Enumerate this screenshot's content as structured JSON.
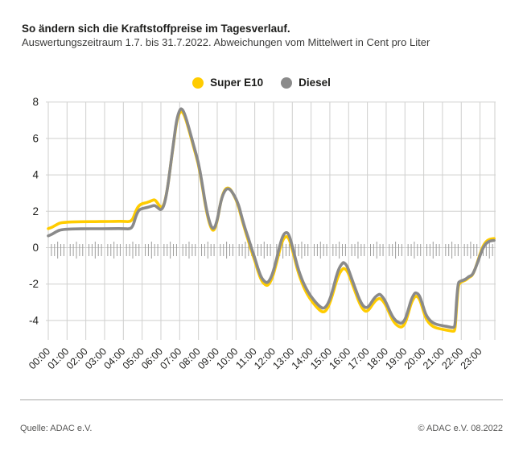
{
  "header": {
    "title": "So ändern sich die Kraftstoffpreise im Tagesverlauf.",
    "subtitle": "Auswertungszeitraum 1.7. bis 31.7.2022. Abweichungen vom Mittelwert in Cent pro Liter"
  },
  "legend": [
    {
      "label": "Super E10",
      "color": "#FFCC00"
    },
    {
      "label": "Diesel",
      "color": "#8A8A8A"
    }
  ],
  "footer": {
    "source": "Quelle: ADAC e.V.",
    "copyright": "© ADAC e.V. 08.2022"
  },
  "colors": {
    "grid": "#cfcfce",
    "minor_tick": "#9c9c9b",
    "axis_text": "#1d1d1b"
  },
  "chart_data": {
    "type": "line",
    "title": "So ändern sich die Kraftstoffpreise im Tagesverlauf.",
    "subtitle": "Auswertungszeitraum 1.7. bis 31.7.2022. Abweichungen vom Mittelwert in Cent pro Liter",
    "xlabel": "",
    "ylabel": "Abweichungen vom Mittelwert in Cent pro Liter",
    "x_unit": "hours",
    "xlim": [
      0,
      23.83
    ],
    "ylim": [
      -5,
      8
    ],
    "yticks": [
      8,
      6,
      4,
      2,
      0,
      -2,
      -4
    ],
    "grid": true,
    "legend_position": "top-center",
    "x_hour_labels": [
      "00:00",
      "01:00",
      "02:00",
      "03:00",
      "04:00",
      "05:00",
      "06:00",
      "07:00",
      "08:00",
      "09:00",
      "10:00",
      "11:00",
      "12:00",
      "13:00",
      "14:00",
      "15:00",
      "16:00",
      "17:00",
      "18:00",
      "19:00",
      "20:00",
      "21:00",
      "22:00",
      "23:00"
    ],
    "x": [
      0,
      0.17,
      0.33,
      0.5,
      0.67,
      1,
      1.5,
      2,
      2.5,
      3,
      3.5,
      4,
      4.33,
      4.5,
      4.67,
      4.83,
      5,
      5.25,
      5.5,
      5.67,
      5.83,
      6,
      6.17,
      6.33,
      6.5,
      6.67,
      6.83,
      7,
      7.1,
      7.25,
      7.5,
      7.75,
      8,
      8.17,
      8.33,
      8.5,
      8.67,
      8.83,
      9,
      9.17,
      9.33,
      9.5,
      9.67,
      9.83,
      10,
      10.17,
      10.33,
      10.5,
      10.67,
      10.83,
      11,
      11.17,
      11.33,
      11.5,
      11.67,
      11.83,
      12,
      12.17,
      12.33,
      12.5,
      12.67,
      12.83,
      13,
      13.17,
      13.33,
      13.5,
      13.67,
      13.83,
      14,
      14.25,
      14.5,
      14.67,
      14.83,
      15,
      15.17,
      15.33,
      15.5,
      15.67,
      15.75,
      15.92,
      16.08,
      16.25,
      16.42,
      16.58,
      16.75,
      16.92,
      17.08,
      17.25,
      17.42,
      17.58,
      17.67,
      17.83,
      18,
      18.17,
      18.33,
      18.5,
      18.67,
      18.83,
      19,
      19.17,
      19.33,
      19.5,
      19.58,
      19.75,
      19.92,
      20.08,
      20.25,
      20.42,
      20.58,
      20.83,
      21.08,
      21.33,
      21.58,
      21.67,
      21.75,
      21.83,
      21.92,
      22.08,
      22.25,
      22.42,
      22.58,
      22.75,
      22.92,
      23.08,
      23.25,
      23.42,
      23.58,
      23.75
    ],
    "series": [
      {
        "name": "Super E10",
        "color": "#FFCC00",
        "values": [
          1.05,
          1.1,
          1.2,
          1.3,
          1.37,
          1.4,
          1.42,
          1.43,
          1.43,
          1.44,
          1.44,
          1.45,
          1.42,
          1.55,
          2.05,
          2.32,
          2.42,
          2.47,
          2.58,
          2.65,
          2.45,
          2.17,
          2.35,
          3.1,
          4.4,
          5.7,
          6.9,
          7.45,
          7.5,
          7.3,
          6.45,
          5.5,
          4.6,
          3.6,
          2.55,
          1.65,
          1.05,
          0.9,
          1.45,
          2.45,
          3.05,
          3.3,
          3.25,
          3,
          2.65,
          2.15,
          1.5,
          0.9,
          0.35,
          -0.2,
          -0.7,
          -1.3,
          -1.75,
          -2,
          -2.1,
          -1.9,
          -1.45,
          -0.8,
          -0.1,
          0.45,
          0.65,
          0.5,
          -0.1,
          -0.8,
          -1.4,
          -1.9,
          -2.3,
          -2.62,
          -2.88,
          -3.22,
          -3.48,
          -3.55,
          -3.42,
          -3.05,
          -2.5,
          -1.9,
          -1.42,
          -1.18,
          -1.12,
          -1.25,
          -1.65,
          -2.15,
          -2.62,
          -3.05,
          -3.38,
          -3.52,
          -3.42,
          -3.15,
          -2.92,
          -2.8,
          -2.78,
          -2.92,
          -3.2,
          -3.6,
          -3.95,
          -4.2,
          -4.33,
          -4.38,
          -4.18,
          -3.65,
          -3.05,
          -2.72,
          -2.65,
          -2.75,
          -3.25,
          -3.8,
          -4.1,
          -4.28,
          -4.38,
          -4.45,
          -4.5,
          -4.55,
          -4.6,
          -4.55,
          -3.3,
          -2.15,
          -1.92,
          -1.85,
          -1.78,
          -1.62,
          -1.55,
          -1.15,
          -0.62,
          -0.1,
          0.25,
          0.42,
          0.48,
          0.5
        ]
      },
      {
        "name": "Diesel",
        "color": "#8A8A8A",
        "values": [
          0.65,
          0.72,
          0.82,
          0.92,
          0.98,
          1.02,
          1.03,
          1.04,
          1.04,
          1.04,
          1.05,
          1.05,
          1.02,
          1.15,
          1.75,
          2.08,
          2.15,
          2.2,
          2.28,
          2.33,
          2.2,
          2.05,
          2.3,
          3.1,
          4.4,
          5.75,
          7,
          7.58,
          7.65,
          7.42,
          6.55,
          5.6,
          4.7,
          3.7,
          2.65,
          1.75,
          1.15,
          1,
          1.5,
          2.45,
          3,
          3.25,
          3.22,
          3,
          2.7,
          2.25,
          1.6,
          1,
          0.5,
          -0.05,
          -0.55,
          -1.15,
          -1.6,
          -1.85,
          -1.95,
          -1.73,
          -1.27,
          -0.6,
          0.12,
          0.67,
          0.87,
          0.72,
          0.08,
          -0.63,
          -1.23,
          -1.72,
          -2.1,
          -2.42,
          -2.68,
          -3.02,
          -3.27,
          -3.35,
          -3.2,
          -2.85,
          -2.28,
          -1.62,
          -1.1,
          -0.85,
          -0.8,
          -1,
          -1.45,
          -1.95,
          -2.42,
          -2.85,
          -3.18,
          -3.32,
          -3.22,
          -2.95,
          -2.7,
          -2.58,
          -2.55,
          -2.72,
          -3.02,
          -3.43,
          -3.77,
          -4,
          -4.12,
          -4.17,
          -3.97,
          -3.45,
          -2.85,
          -2.52,
          -2.47,
          -2.57,
          -3.05,
          -3.6,
          -3.9,
          -4.08,
          -4.18,
          -4.25,
          -4.3,
          -4.35,
          -4.4,
          -4.3,
          -2.9,
          -1.95,
          -1.85,
          -1.8,
          -1.72,
          -1.57,
          -1.52,
          -1.15,
          -0.68,
          -0.2,
          0.15,
          0.32,
          0.38,
          0.4
        ]
      }
    ]
  }
}
